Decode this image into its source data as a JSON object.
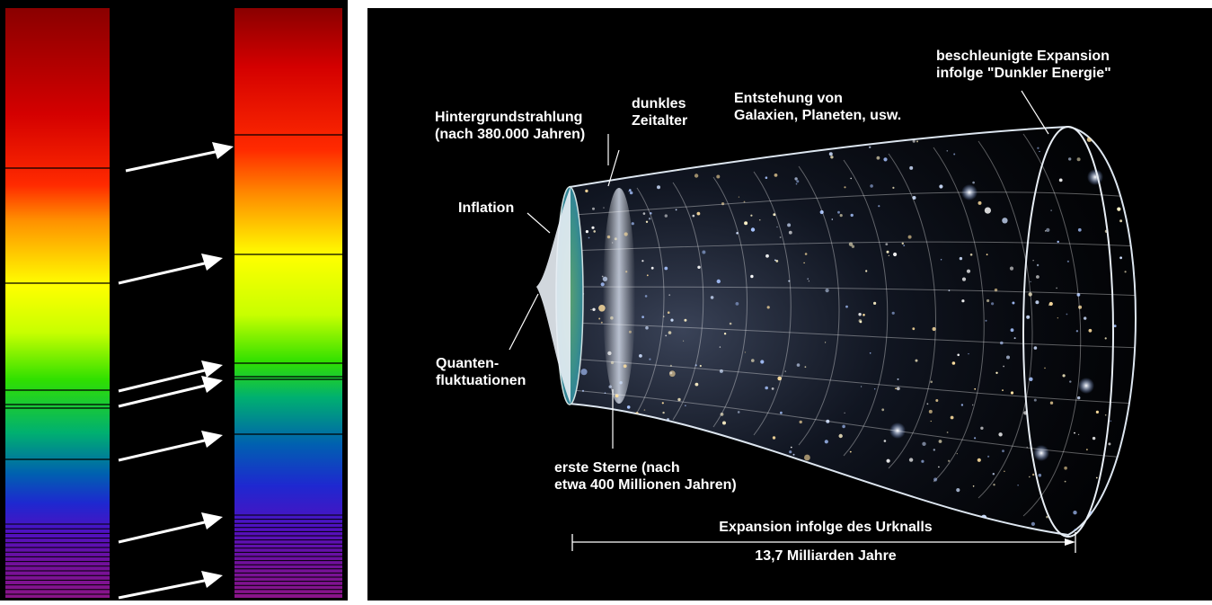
{
  "spectrum_figure": {
    "colors": {
      "background": "#000000",
      "arrow": "#ffffff",
      "line": "#000000"
    },
    "spectrum_stops": [
      "#8a0000",
      "#d40000",
      "#ff2a00",
      "#ff9000",
      "#ffff00",
      "#c8ff00",
      "#30e000",
      "#00b070",
      "#0060b0",
      "#1e28d0",
      "#5010c0",
      "#70109c",
      "#8a1488"
    ],
    "shift_arrow_count": 7,
    "original_band": "left",
    "shifted_band": "right"
  },
  "universe_figure": {
    "colors": {
      "background": "#000000",
      "text": "#ffffff",
      "cone_glow": "#dde6f0",
      "cmb": "#4a9a8a"
    },
    "labels": {
      "hintergrund": "Hintergrundstrahlung\n(nach 380.000 Jahren)",
      "dunkles": "dunkles\nZeitalter",
      "entstehung": "Entstehung von\nGalaxien, Planeten, usw.",
      "beschleunigte": "beschleunigte Expansion\ninfolge \"Dunkler Energie\"",
      "inflation": "Inflation",
      "quanten": "Quanten-\nfluktuationen",
      "erste_sterne": "erste Sterne (nach\netwa 400 Millionen Jahren)",
      "expansion": "Expansion infolge des Urknalls",
      "dauer": "13,7 Milliarden Jahre"
    }
  }
}
